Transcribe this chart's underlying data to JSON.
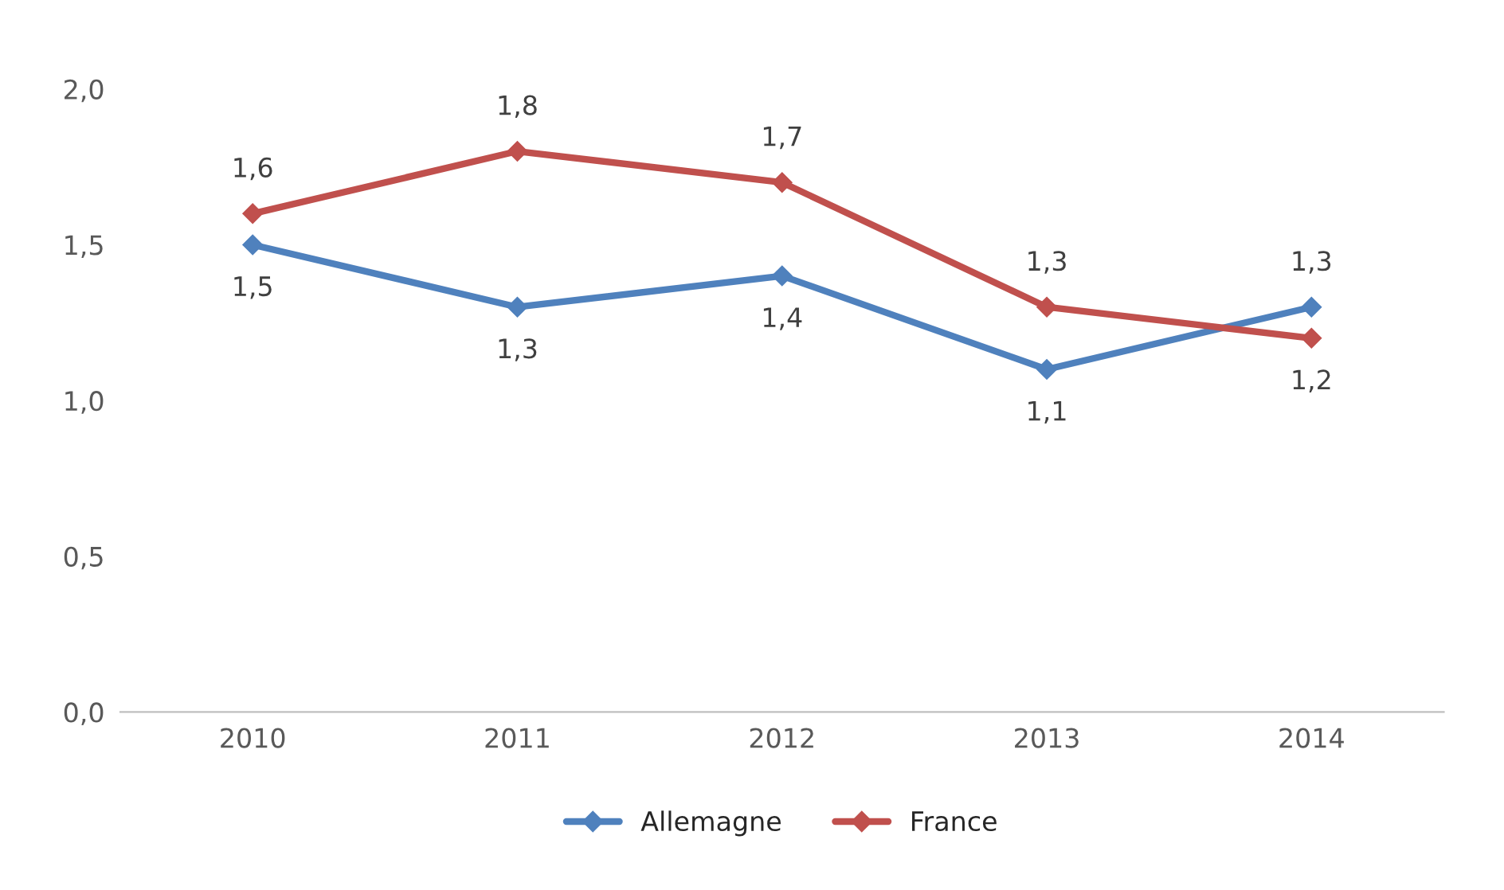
{
  "chart_data": {
    "type": "line",
    "categories": [
      "2010",
      "2011",
      "2012",
      "2013",
      "2014"
    ],
    "series": [
      {
        "name": "Allemagne",
        "color": "#4f81bd",
        "values": [
          1.5,
          1.3,
          1.4,
          1.1,
          1.3
        ],
        "value_labels": [
          "1,5",
          "1,3",
          "1,4",
          "1,1",
          "1,3"
        ]
      },
      {
        "name": "France",
        "color": "#c0504d",
        "values": [
          1.6,
          1.8,
          1.7,
          1.3,
          1.2
        ],
        "value_labels": [
          "1,6",
          "1,8",
          "1,7",
          "1,3",
          "1,2"
        ]
      }
    ],
    "ylim": [
      0,
      2.0
    ],
    "yticks": [
      {
        "value": 0,
        "label": "0,0"
      },
      {
        "value": 0.5,
        "label": "0,5"
      },
      {
        "value": 1.0,
        "label": "1,0"
      },
      {
        "value": 1.5,
        "label": "1,5"
      },
      {
        "value": 2.0,
        "label": "2,0"
      }
    ],
    "grid": false,
    "legend": "bottom",
    "marker": "diamond",
    "line_style": "solid"
  }
}
